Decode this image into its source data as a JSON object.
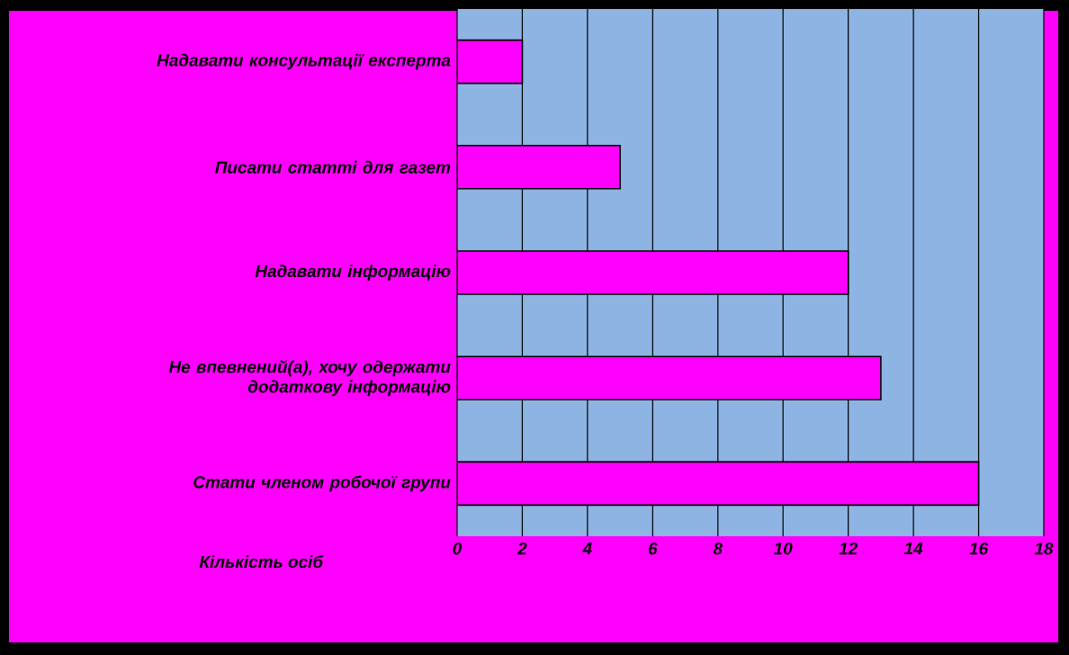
{
  "chart_data": {
    "type": "bar",
    "orientation": "horizontal",
    "categories": [
      "Надавати консультації експерта",
      "Писати статті для газет",
      "Надавати інформацію",
      "Не впевнений(а), хочу одержати додаткову інформацію",
      "Стати членом робочої групи"
    ],
    "values": [
      2,
      5,
      12,
      13,
      16
    ],
    "color": "#ff00ff",
    "xlabel": "Кількість осіб",
    "xlim": [
      0,
      18
    ],
    "xticks": [
      0,
      2,
      4,
      6,
      8,
      10,
      12,
      14,
      16,
      18
    ],
    "grid": "x"
  }
}
